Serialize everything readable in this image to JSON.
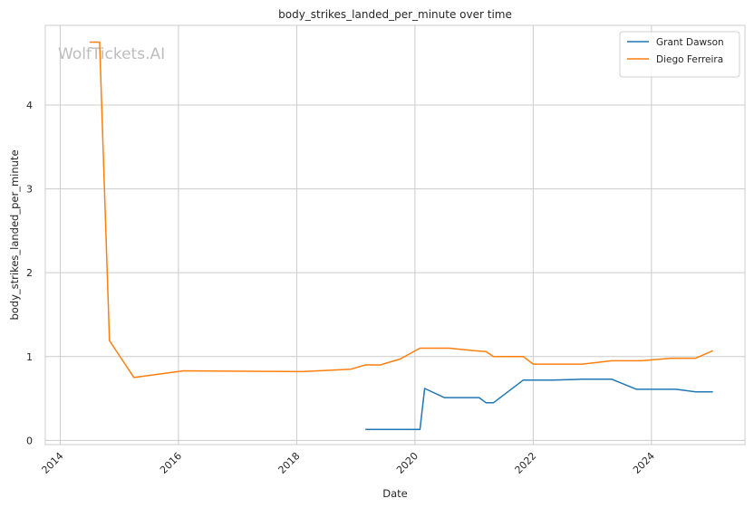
{
  "chart_data": {
    "type": "line",
    "title": "body_strikes_landed_per_minute over time",
    "xlabel": "Date",
    "ylabel": "body_strikes_landed_per_minute",
    "watermark": "WolfTickets.AI",
    "x_tick_labels": [
      "2014",
      "2016",
      "2018",
      "2020",
      "2022",
      "2024"
    ],
    "y_tick_labels": [
      "0",
      "1",
      "2",
      "3",
      "4"
    ],
    "xlim": [
      "2013-10-01",
      "2025-08-01"
    ],
    "ylim": [
      -0.05,
      4.95
    ],
    "grid": true,
    "legend_position": "top-right",
    "series": [
      {
        "name": "Grant Dawson",
        "color": "#1f77b4",
        "points": [
          [
            "2019-03-01",
            0.13
          ],
          [
            "2020-02-01",
            0.13
          ],
          [
            "2020-03-01",
            0.62
          ],
          [
            "2020-07-01",
            0.51
          ],
          [
            "2021-02-01",
            0.51
          ],
          [
            "2021-03-15",
            0.45
          ],
          [
            "2021-05-01",
            0.45
          ],
          [
            "2021-11-01",
            0.72
          ],
          [
            "2022-05-01",
            0.72
          ],
          [
            "2022-11-01",
            0.73
          ],
          [
            "2023-05-01",
            0.73
          ],
          [
            "2023-10-01",
            0.61
          ],
          [
            "2024-06-01",
            0.61
          ],
          [
            "2024-10-01",
            0.58
          ],
          [
            "2025-01-15",
            0.58
          ]
        ]
      },
      {
        "name": "Diego Ferreira",
        "color": "#ff7f0e",
        "points": [
          [
            "2014-07-01",
            4.75
          ],
          [
            "2014-09-01",
            4.75
          ],
          [
            "2014-11-01",
            1.19
          ],
          [
            "2015-04-01",
            0.75
          ],
          [
            "2016-02-01",
            0.83
          ],
          [
            "2018-02-01",
            0.82
          ],
          [
            "2018-12-01",
            0.85
          ],
          [
            "2019-03-01",
            0.9
          ],
          [
            "2019-06-01",
            0.9
          ],
          [
            "2019-10-01",
            0.97
          ],
          [
            "2020-02-01",
            1.1
          ],
          [
            "2020-08-01",
            1.1
          ],
          [
            "2021-01-01",
            1.07
          ],
          [
            "2021-03-15",
            1.06
          ],
          [
            "2021-05-01",
            1.0
          ],
          [
            "2021-11-01",
            1.0
          ],
          [
            "2022-01-01",
            0.91
          ],
          [
            "2022-11-01",
            0.91
          ],
          [
            "2023-05-01",
            0.95
          ],
          [
            "2023-11-01",
            0.95
          ],
          [
            "2024-05-01",
            0.98
          ],
          [
            "2024-10-01",
            0.98
          ],
          [
            "2025-01-15",
            1.07
          ]
        ]
      }
    ]
  }
}
